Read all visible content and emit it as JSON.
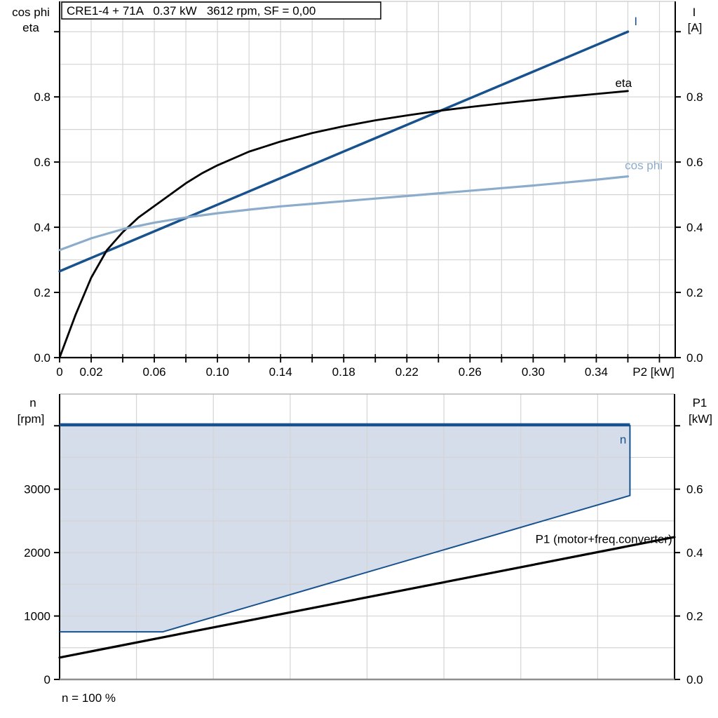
{
  "colors": {
    "dark_blue": "#17528F",
    "light_blue": "#8CACCB",
    "fill_blue": "#D4DDE9",
    "grid": "#D4D4D4",
    "axis": "#000000",
    "gray_frame": "#8F8F8F",
    "top_frame": "#C9C9C9"
  },
  "chart_data": [
    {
      "type": "line",
      "title": "CRE1-4 + 71A   0.37 kW   3612 rpm, SF = 0,00",
      "xlabel": "P2 [kW]",
      "left_axis_title": [
        "cos phi",
        "eta"
      ],
      "right_axis_title": [
        "I",
        "[A]"
      ],
      "xlim": [
        0,
        0.39
      ],
      "ylim": [
        0,
        1.093
      ],
      "grid": true,
      "x_minor_step": 0.02,
      "y_minor_step": 0.1,
      "x_tick_labels": [
        {
          "v": 0,
          "t": "0"
        },
        {
          "v": 0.02,
          "t": "0.02"
        },
        {
          "v": 0.06,
          "t": "0.06"
        },
        {
          "v": 0.1,
          "t": "0.10"
        },
        {
          "v": 0.14,
          "t": "0.14"
        },
        {
          "v": 0.18,
          "t": "0.18"
        },
        {
          "v": 0.22,
          "t": "0.22"
        },
        {
          "v": 0.26,
          "t": "0.26"
        },
        {
          "v": 0.3,
          "t": "0.30"
        },
        {
          "v": 0.34,
          "t": "0.34"
        }
      ],
      "y_ticks": [
        0,
        0.2,
        0.4,
        0.6,
        0.8,
        1.0
      ],
      "y_tick_labels": [
        {
          "v": 0,
          "t": "0.0"
        },
        {
          "v": 0.2,
          "t": "0.2"
        },
        {
          "v": 0.4,
          "t": "0.4"
        },
        {
          "v": 0.6,
          "t": "0.6"
        },
        {
          "v": 0.8,
          "t": "0.8"
        }
      ],
      "series": [
        {
          "name": "I",
          "color_key": "dark_blue",
          "width": 3.5,
          "points": [
            [
              0,
              0.265
            ],
            [
              0.36,
              1.0
            ]
          ],
          "label": {
            "text": "I",
            "x": 0.365,
            "y": 1.02,
            "anchor": "middle"
          }
        },
        {
          "name": "eta",
          "color_key": "axis",
          "width": 2.8,
          "points": [
            [
              0,
              0
            ],
            [
              0.01,
              0.13
            ],
            [
              0.02,
              0.245
            ],
            [
              0.03,
              0.33
            ],
            [
              0.04,
              0.385
            ],
            [
              0.05,
              0.43
            ],
            [
              0.06,
              0.465
            ],
            [
              0.07,
              0.5
            ],
            [
              0.08,
              0.535
            ],
            [
              0.09,
              0.565
            ],
            [
              0.1,
              0.59
            ],
            [
              0.12,
              0.632
            ],
            [
              0.14,
              0.663
            ],
            [
              0.16,
              0.689
            ],
            [
              0.18,
              0.71
            ],
            [
              0.2,
              0.728
            ],
            [
              0.22,
              0.743
            ],
            [
              0.24,
              0.757
            ],
            [
              0.26,
              0.769
            ],
            [
              0.28,
              0.78
            ],
            [
              0.3,
              0.79
            ],
            [
              0.32,
              0.8
            ],
            [
              0.34,
              0.809
            ],
            [
              0.36,
              0.818
            ]
          ],
          "label": {
            "text": "eta",
            "x": 0.352,
            "y": 0.83,
            "anchor": "start"
          }
        },
        {
          "name": "cos phi",
          "color_key": "light_blue",
          "width": 3.2,
          "points": [
            [
              0,
              0.33
            ],
            [
              0.02,
              0.366
            ],
            [
              0.04,
              0.394
            ],
            [
              0.06,
              0.414
            ],
            [
              0.08,
              0.43
            ],
            [
              0.1,
              0.443
            ],
            [
              0.12,
              0.454
            ],
            [
              0.14,
              0.464
            ],
            [
              0.16,
              0.472
            ],
            [
              0.18,
              0.48
            ],
            [
              0.2,
              0.488
            ],
            [
              0.22,
              0.496
            ],
            [
              0.24,
              0.504
            ],
            [
              0.26,
              0.512
            ],
            [
              0.28,
              0.52
            ],
            [
              0.3,
              0.528
            ],
            [
              0.32,
              0.537
            ],
            [
              0.34,
              0.546
            ],
            [
              0.36,
              0.556
            ]
          ],
          "label": {
            "text": "cos phi",
            "x": 0.382,
            "y": 0.578,
            "anchor": "end"
          }
        }
      ]
    },
    {
      "type": "line+area",
      "left_axis_title": [
        "n",
        "[rpm]"
      ],
      "right_axis_title": [
        "P1",
        "[kW]"
      ],
      "footnote": "n = 100 %",
      "xlim": [
        0,
        8
      ],
      "x_divisions": 8,
      "ylim_left": [
        0,
        4500
      ],
      "ylim_right": [
        0,
        0.9
      ],
      "grid": true,
      "y_left_minor_step": 500,
      "y_left_ticks": [
        0,
        1000,
        2000,
        3000,
        4000
      ],
      "y_left_tick_labels": [
        {
          "v": 0,
          "t": "0"
        },
        {
          "v": 1000,
          "t": "1000"
        },
        {
          "v": 2000,
          "t": "2000"
        },
        {
          "v": 3000,
          "t": "3000"
        }
      ],
      "y_right_ticks": [
        0,
        0.2,
        0.4,
        0.6,
        0.8
      ],
      "y_right_tick_labels": [
        {
          "v": 0,
          "t": "0.0"
        },
        {
          "v": 0.2,
          "t": "0.2"
        },
        {
          "v": 0.4,
          "t": "0.4"
        },
        {
          "v": 0.6,
          "t": "0.6"
        }
      ],
      "envelope": {
        "name": "speed-operating-range",
        "fill_key": "fill_blue",
        "line_color_key": "dark_blue",
        "points_rpm": [
          [
            0,
            4015
          ],
          [
            7.42,
            4015
          ],
          [
            7.42,
            2900
          ],
          [
            1.34,
            750
          ],
          [
            0,
            750
          ]
        ],
        "boundary_rpm": [
          [
            7.42,
            4015
          ],
          [
            7.42,
            2900
          ],
          [
            1.34,
            750
          ],
          [
            0,
            750
          ]
        ],
        "top_line_rpm": [
          [
            0,
            4015
          ],
          [
            7.42,
            4015
          ]
        ],
        "top_line_width": 4.5,
        "boundary_width": 2,
        "label": {
          "text": "n",
          "x": 7.33,
          "y": 3720,
          "anchor": "middle"
        }
      },
      "series": [
        {
          "name": "P1 (motor+freq.converter)",
          "axis": "right",
          "color_key": "axis",
          "width": 3.2,
          "points": [
            [
              0,
              0.069
            ],
            [
              8,
              0.449
            ]
          ],
          "label": {
            "text": "P1 (motor+freq.converter)",
            "x": 7.97,
            "y": 0.43,
            "anchor": "end"
          }
        }
      ]
    }
  ]
}
